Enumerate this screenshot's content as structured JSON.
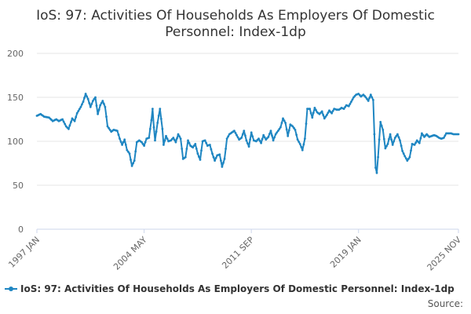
{
  "chart_data": {
    "type": "line",
    "title_lines": [
      "IoS: 97: Activities Of Households As Employers Of Domestic",
      "Personnel: Index-1dp"
    ],
    "xlabel": "",
    "ylabel": "",
    "ylim": [
      0,
      200
    ],
    "yticks": [
      "0",
      "50",
      "100",
      "150",
      "200"
    ],
    "xticks": [
      {
        "label": "1997 JAN",
        "t": 0
      },
      {
        "label": "2004 MAY",
        "t": 88
      },
      {
        "label": "2011 SEP",
        "t": 176
      },
      {
        "label": "2019 JAN",
        "t": 264
      },
      {
        "label": "2025 NOV",
        "t": 346
      }
    ],
    "grid": true,
    "legend_position": "bottom",
    "series": [
      {
        "name": "IoS: 97: Activities Of Households As Employers Of Domestic Personnel: Index-1dp",
        "color": "#1f86c2",
        "anchors": [
          [
            0,
            129
          ],
          [
            3,
            131
          ],
          [
            6,
            128
          ],
          [
            10,
            127
          ],
          [
            13,
            123
          ],
          [
            16,
            125
          ],
          [
            18,
            123
          ],
          [
            21,
            125
          ],
          [
            24,
            117
          ],
          [
            26,
            114
          ],
          [
            29,
            126
          ],
          [
            31,
            123
          ],
          [
            33,
            132
          ],
          [
            36,
            139
          ],
          [
            38,
            145
          ],
          [
            40,
            154
          ],
          [
            42,
            148
          ],
          [
            44,
            139
          ],
          [
            46,
            146
          ],
          [
            48,
            150
          ],
          [
            50,
            131
          ],
          [
            52,
            141
          ],
          [
            54,
            146
          ],
          [
            56,
            139
          ],
          [
            58,
            117
          ],
          [
            61,
            111
          ],
          [
            63,
            113
          ],
          [
            66,
            112
          ],
          [
            68,
            103
          ],
          [
            70,
            96
          ],
          [
            72,
            102
          ],
          [
            74,
            90
          ],
          [
            76,
            86
          ],
          [
            78,
            72
          ],
          [
            80,
            78
          ],
          [
            82,
            99
          ],
          [
            84,
            101
          ],
          [
            86,
            99
          ],
          [
            88,
            95
          ],
          [
            90,
            103
          ],
          [
            92,
            104
          ],
          [
            94,
            124
          ],
          [
            95,
            137
          ],
          [
            96,
            116
          ],
          [
            97,
            101
          ],
          [
            99,
            121
          ],
          [
            101,
            137
          ],
          [
            103,
            114
          ],
          [
            104,
            96
          ],
          [
            106,
            106
          ],
          [
            108,
            100
          ],
          [
            110,
            101
          ],
          [
            112,
            104
          ],
          [
            114,
            99
          ],
          [
            116,
            108
          ],
          [
            118,
            103
          ],
          [
            120,
            80
          ],
          [
            122,
            82
          ],
          [
            124,
            101
          ],
          [
            126,
            95
          ],
          [
            128,
            93
          ],
          [
            130,
            97
          ],
          [
            132,
            86
          ],
          [
            134,
            79
          ],
          [
            136,
            100
          ],
          [
            138,
            101
          ],
          [
            140,
            95
          ],
          [
            142,
            96
          ],
          [
            144,
            86
          ],
          [
            146,
            78
          ],
          [
            148,
            84
          ],
          [
            150,
            85
          ],
          [
            152,
            71
          ],
          [
            154,
            80
          ],
          [
            156,
            103
          ],
          [
            158,
            108
          ],
          [
            160,
            110
          ],
          [
            162,
            112
          ],
          [
            164,
            107
          ],
          [
            166,
            102
          ],
          [
            168,
            104
          ],
          [
            170,
            112
          ],
          [
            172,
            101
          ],
          [
            174,
            94
          ],
          [
            176,
            110
          ],
          [
            178,
            101
          ],
          [
            180,
            100
          ],
          [
            182,
            103
          ],
          [
            184,
            98
          ],
          [
            186,
            107
          ],
          [
            188,
            102
          ],
          [
            190,
            105
          ],
          [
            192,
            112
          ],
          [
            194,
            101
          ],
          [
            196,
            108
          ],
          [
            198,
            112
          ],
          [
            200,
            116
          ],
          [
            202,
            126
          ],
          [
            204,
            121
          ],
          [
            206,
            106
          ],
          [
            208,
            119
          ],
          [
            210,
            117
          ],
          [
            212,
            113
          ],
          [
            214,
            102
          ],
          [
            216,
            97
          ],
          [
            218,
            90
          ],
          [
            220,
            103
          ],
          [
            222,
            137
          ],
          [
            224,
            137
          ],
          [
            226,
            127
          ],
          [
            228,
            138
          ],
          [
            230,
            133
          ],
          [
            232,
            131
          ],
          [
            234,
            134
          ],
          [
            236,
            126
          ],
          [
            238,
            130
          ],
          [
            240,
            135
          ],
          [
            242,
            132
          ],
          [
            244,
            137
          ],
          [
            246,
            136
          ],
          [
            248,
            136
          ],
          [
            250,
            138
          ],
          [
            252,
            137
          ],
          [
            254,
            141
          ],
          [
            256,
            140
          ],
          [
            258,
            145
          ],
          [
            260,
            150
          ],
          [
            262,
            153
          ],
          [
            264,
            154
          ],
          [
            266,
            151
          ],
          [
            268,
            153
          ],
          [
            270,
            150
          ],
          [
            272,
            146
          ],
          [
            274,
            153
          ],
          [
            276,
            147
          ],
          [
            277,
            108
          ],
          [
            278,
            70
          ],
          [
            279,
            64
          ],
          [
            280,
            82
          ],
          [
            282,
            122
          ],
          [
            284,
            113
          ],
          [
            286,
            92
          ],
          [
            288,
            97
          ],
          [
            290,
            108
          ],
          [
            292,
            96
          ],
          [
            294,
            104
          ],
          [
            296,
            108
          ],
          [
            298,
            101
          ],
          [
            300,
            89
          ],
          [
            302,
            83
          ],
          [
            304,
            78
          ],
          [
            306,
            82
          ],
          [
            308,
            97
          ],
          [
            310,
            96
          ],
          [
            312,
            101
          ],
          [
            314,
            98
          ],
          [
            316,
            109
          ],
          [
            318,
            105
          ],
          [
            320,
            108
          ],
          [
            322,
            105
          ],
          [
            324,
            106
          ],
          [
            326,
            107
          ],
          [
            328,
            106
          ],
          [
            330,
            104
          ],
          [
            332,
            103
          ],
          [
            334,
            104
          ],
          [
            336,
            109
          ],
          [
            338,
            109
          ],
          [
            340,
            109
          ],
          [
            342,
            108
          ],
          [
            344,
            108
          ],
          [
            346,
            108
          ]
        ]
      }
    ],
    "source_label": "Source:"
  }
}
